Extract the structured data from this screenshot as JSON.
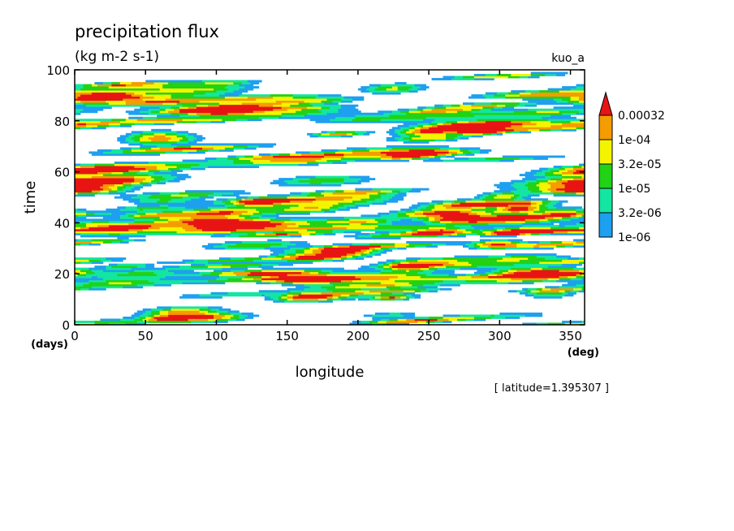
{
  "chart_data": {
    "type": "heatmap",
    "title": "precipitation flux",
    "subtitle": "(kg m-2 s-1)",
    "run_label": "kuo_a",
    "xlabel": "longitude",
    "ylabel": "time",
    "x_unit": "(deg)",
    "y_unit": "(days)",
    "xlim": [
      0,
      360
    ],
    "ylim": [
      0,
      100
    ],
    "x_ticks": [
      0,
      50,
      100,
      150,
      200,
      250,
      300,
      350
    ],
    "y_ticks": [
      0,
      20,
      40,
      60,
      80,
      100
    ],
    "footnote": "[ latitude=1.395307 ]",
    "grid": false,
    "legend_position": "right",
    "levels": [
      "1e-06",
      "3.2e-06",
      "1e-05",
      "3.2e-05",
      "1e-04",
      "0.00032"
    ],
    "bin_colors": [
      "#1ea0f0",
      "#12e6a0",
      "#22d214",
      "#f4f400",
      "#f49c00",
      "#e81414"
    ],
    "pattern": {
      "description_free": true,
      "band_slope_deg_per_day": -8,
      "seed": 7
    }
  }
}
